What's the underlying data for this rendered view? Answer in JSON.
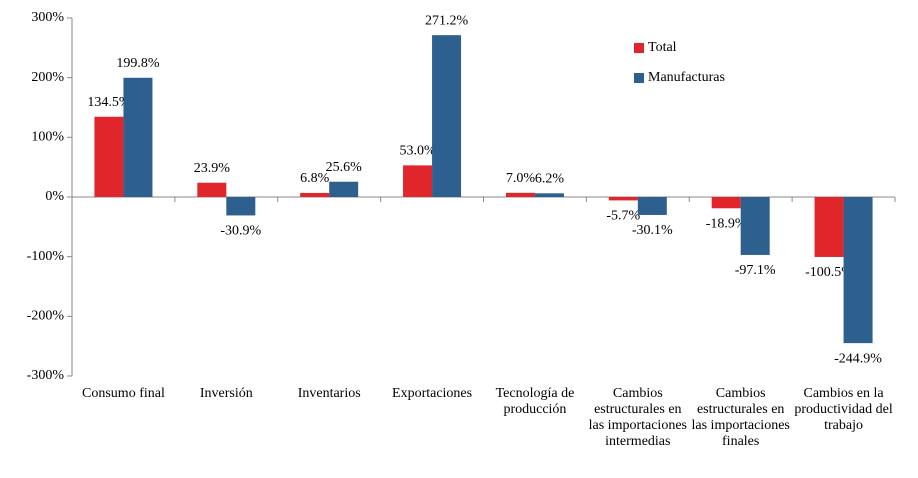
{
  "chart_data": {
    "type": "bar",
    "categories": [
      "Consumo final",
      "Inversión",
      "Inventarios",
      "Exportaciones",
      "Tecnología de producción",
      "Cambios estructurales en las importaciones intermedias",
      "Cambios estructurales en las importaciones finales",
      "Cambios en la productividad del trabajo"
    ],
    "series": [
      {
        "name": "Total",
        "color": "#e0252b",
        "values": [
          134.5,
          23.9,
          6.8,
          53.0,
          7.0,
          -5.7,
          -18.9,
          -100.5
        ],
        "value_labels": [
          "134.5%",
          "23.9%",
          "6.8%",
          "53.0%",
          "7.0%",
          "-5.7%",
          "-18.9%",
          "-100.5%"
        ]
      },
      {
        "name": "Manufacturas",
        "color": "#2d5f8f",
        "values": [
          199.8,
          -30.9,
          25.6,
          271.2,
          6.2,
          -30.1,
          -97.1,
          -244.9
        ],
        "value_labels": [
          "199.8%",
          "-30.9%",
          "25.6%",
          "271.2%",
          "6.2%",
          "-30.1%",
          "-97.1%",
          "-244.9%"
        ]
      }
    ],
    "ylim": [
      -300,
      300
    ],
    "yticks": [
      {
        "value": -300,
        "label": "-300%"
      },
      {
        "value": -200,
        "label": "-200%"
      },
      {
        "value": -100,
        "label": "-100%"
      },
      {
        "value": 0,
        "label": "0%"
      },
      {
        "value": 100,
        "label": "100%"
      },
      {
        "value": 200,
        "label": "200%"
      },
      {
        "value": 300,
        "label": "300%"
      }
    ],
    "legend": "upper right"
  }
}
